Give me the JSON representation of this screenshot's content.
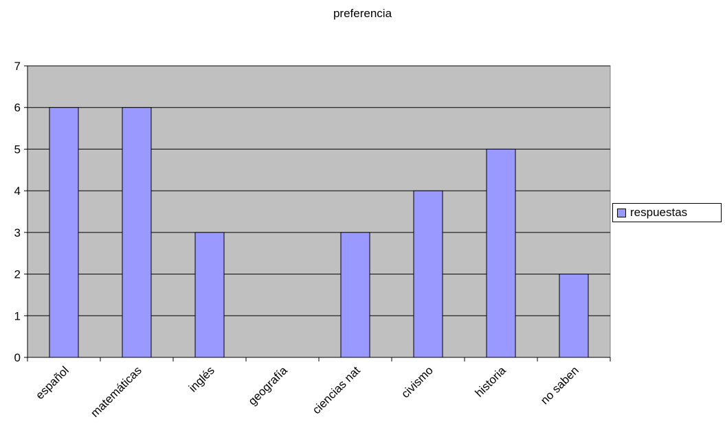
{
  "chart_data": {
    "type": "bar",
    "title": "preferencia",
    "xlabel": "",
    "ylabel": "",
    "categories": [
      "español",
      "matemáticas",
      "inglés",
      "geografía",
      "ciencias nat",
      "civismo",
      "historia",
      "no saben"
    ],
    "series": [
      {
        "name": "respuestas",
        "values": [
          6,
          6,
          3,
          0,
          3,
          4,
          5,
          2
        ],
        "color": "#9999ff"
      }
    ],
    "ylim": [
      0,
      7
    ],
    "yticks": [
      0,
      1,
      2,
      3,
      4,
      5,
      6,
      7
    ],
    "grid": true,
    "plot_background": "#c0c0c0",
    "legend_position": "right"
  }
}
